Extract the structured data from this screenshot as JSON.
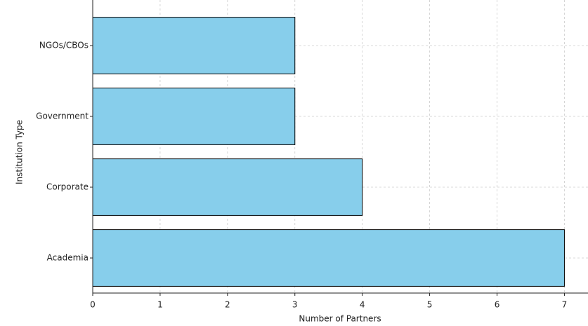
{
  "chart_data": {
    "type": "barh",
    "categories": [
      "Academia",
      "Corporate",
      "Government",
      "NGOs/CBOs"
    ],
    "values": [
      7,
      4,
      3,
      3
    ],
    "color": "#87ceeb",
    "edge_color": "#000000",
    "xlabel": "Number of Partners",
    "ylabel": "Institution Type",
    "xlim": [
      0,
      7.35
    ],
    "xticks": [
      0,
      1,
      2,
      3,
      4,
      5,
      6,
      7
    ],
    "grid": true
  }
}
